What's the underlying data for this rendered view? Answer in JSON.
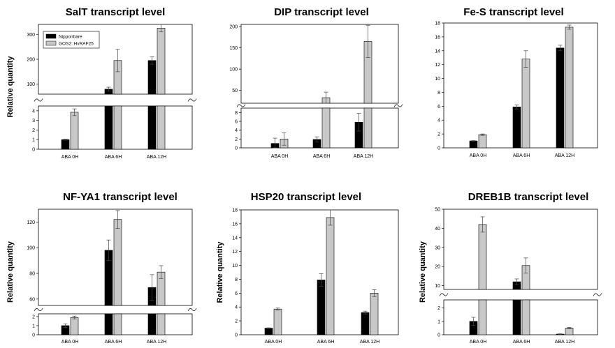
{
  "colors": {
    "nipponbare": "#000000",
    "gos2": "#c8c8c8"
  },
  "legend": [
    {
      "name": "Nipponbare",
      "color": "#000000"
    },
    {
      "name": "GOS2::HvRAF25",
      "color": "#c8c8c8"
    }
  ],
  "chart_data": [
    {
      "type": "bar",
      "title": "SalT transcript level",
      "ylabel": "Relative quantity",
      "categories": [
        "ABA 0H",
        "ABA 6H",
        "ABA 12H"
      ],
      "series": [
        {
          "name": "Nipponbare",
          "values": [
            1.0,
            80,
            195
          ],
          "errors": [
            0.05,
            8,
            15
          ]
        },
        {
          "name": "GOS2::HvRAF25",
          "values": [
            3.85,
            195,
            325
          ],
          "errors": [
            0.35,
            45,
            15
          ]
        }
      ],
      "axis_break": true,
      "lower": {
        "ylim": [
          0,
          4.5
        ],
        "ticks": [
          0,
          1,
          2,
          3,
          4
        ]
      },
      "upper": {
        "ylim": [
          60,
          340
        ],
        "ticks": [
          100,
          200,
          300
        ]
      },
      "legend_position": "top-left"
    },
    {
      "type": "bar",
      "title": "DIP transcript level",
      "ylabel": "",
      "categories": [
        "ABA 0H",
        "ABA 6H",
        "ABA 12H"
      ],
      "series": [
        {
          "name": "Nipponbare",
          "values": [
            1.0,
            1.9,
            5.8
          ],
          "errors": [
            1.2,
            0.6,
            2.0
          ]
        },
        {
          "name": "GOS2::HvRAF25",
          "values": [
            2.0,
            33,
            165
          ],
          "errors": [
            1.4,
            13,
            38
          ]
        }
      ],
      "axis_break": true,
      "lower": {
        "ylim": [
          0,
          9
        ],
        "ticks": [
          0,
          2,
          4,
          6,
          8
        ]
      },
      "upper": {
        "ylim": [
          20,
          205
        ],
        "ticks": [
          50,
          100,
          150,
          200
        ]
      }
    },
    {
      "type": "bar",
      "title": "Fe-S transcript level",
      "ylabel": "",
      "categories": [
        "ABA 0H",
        "ABA 6H",
        "ABA 12H"
      ],
      "series": [
        {
          "name": "Nipponbare",
          "values": [
            1.0,
            5.9,
            14.4
          ],
          "errors": [
            0.05,
            0.3,
            0.4
          ]
        },
        {
          "name": "GOS2::HvRAF25",
          "values": [
            1.9,
            12.8,
            17.4
          ],
          "errors": [
            0.1,
            1.2,
            0.3
          ]
        }
      ],
      "axis_break": false,
      "ylim": [
        0,
        18
      ],
      "ticks": [
        0,
        2,
        4,
        6,
        8,
        10,
        12,
        14,
        16,
        18
      ]
    },
    {
      "type": "bar",
      "title": "NF-YA1 transcript level",
      "ylabel": "Relative quantity",
      "categories": [
        "ABA 0H",
        "ABA 6H",
        "ABA 12H"
      ],
      "series": [
        {
          "name": "Nipponbare",
          "values": [
            1.0,
            98,
            69
          ],
          "errors": [
            0.2,
            8,
            10
          ]
        },
        {
          "name": "GOS2::HvRAF25",
          "values": [
            1.9,
            122,
            81
          ],
          "errors": [
            0.15,
            7,
            5
          ]
        }
      ],
      "axis_break": true,
      "lower": {
        "ylim": [
          0,
          2.3
        ],
        "ticks": [
          0,
          1,
          2
        ]
      },
      "upper": {
        "ylim": [
          55,
          130
        ],
        "ticks": [
          60,
          80,
          100,
          120
        ]
      }
    },
    {
      "type": "bar",
      "title": "HSP20 transcript level",
      "ylabel": "Relative quantity",
      "categories": [
        "ABA 0H",
        "ABA 6H",
        "ABA 12H"
      ],
      "series": [
        {
          "name": "Nipponbare",
          "values": [
            0.95,
            7.9,
            3.2
          ],
          "errors": [
            0.05,
            0.9,
            0.2
          ]
        },
        {
          "name": "GOS2::HvRAF25",
          "values": [
            3.7,
            16.9,
            6.0
          ],
          "errors": [
            0.15,
            1.1,
            0.5
          ]
        }
      ],
      "axis_break": false,
      "ylim": [
        0,
        18
      ],
      "ticks": [
        0,
        2,
        4,
        6,
        8,
        10,
        12,
        14,
        16,
        18
      ]
    },
    {
      "type": "bar",
      "title": "DREB1B transcript level",
      "ylabel": "Relative quantity",
      "categories": [
        "ABA 0H",
        "ABA 6H",
        "ABA 12H"
      ],
      "series": [
        {
          "name": "Nipponbare",
          "values": [
            1.0,
            12,
            0.05
          ],
          "errors": [
            0.3,
            1.5,
            0.02
          ]
        },
        {
          "name": "GOS2::HvRAF25",
          "values": [
            42,
            20.5,
            0.5
          ],
          "errors": [
            4,
            4,
            0.05
          ]
        }
      ],
      "axis_break": true,
      "lower": {
        "ylim": [
          0,
          2.6
        ],
        "ticks": [
          0,
          1,
          2
        ]
      },
      "upper": {
        "ylim": [
          8,
          50
        ],
        "ticks": [
          10,
          20,
          30,
          40,
          50
        ]
      }
    }
  ]
}
